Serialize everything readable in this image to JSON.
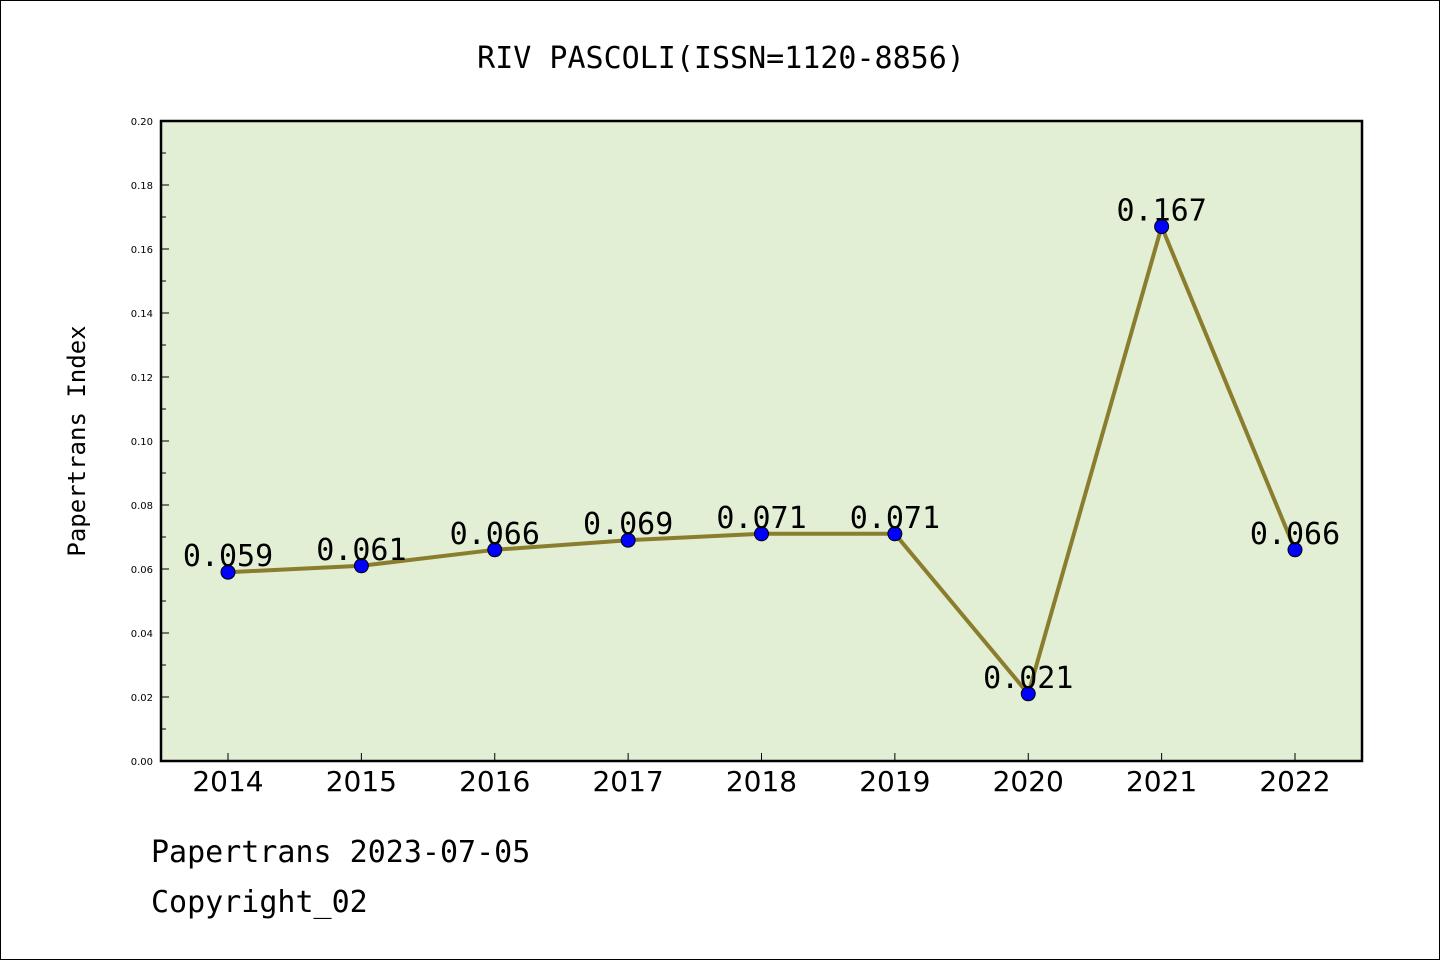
{
  "chart_data": {
    "type": "line",
    "title": "RIV PASCOLI(ISSN=1120-8856)",
    "xlabel": "",
    "ylabel": "Papertrans Index",
    "categories": [
      "2014",
      "2015",
      "2016",
      "2017",
      "2018",
      "2019",
      "2020",
      "2021",
      "2022"
    ],
    "values": [
      0.059,
      0.061,
      0.066,
      0.069,
      0.071,
      0.071,
      0.021,
      0.167,
      0.066
    ],
    "data_labels": [
      "0.059",
      "0.061",
      "0.066",
      "0.069",
      "0.071",
      "0.071",
      "0.021",
      "0.167",
      "0.066"
    ],
    "ylim": [
      0,
      0.2
    ],
    "yticks": [
      "0.00",
      "0.02",
      "0.04",
      "0.06",
      "0.08",
      "0.10",
      "0.12",
      "0.14",
      "0.16",
      "0.18",
      "0.20"
    ],
    "grid": false,
    "legend": "none",
    "colors": {
      "plot_background": "#e2efd5",
      "line": "#8b7d2e",
      "marker": "#0000ff"
    }
  },
  "footer": {
    "date_line": "Papertrans 2023-07-05",
    "copyright": "Copyright_02"
  }
}
